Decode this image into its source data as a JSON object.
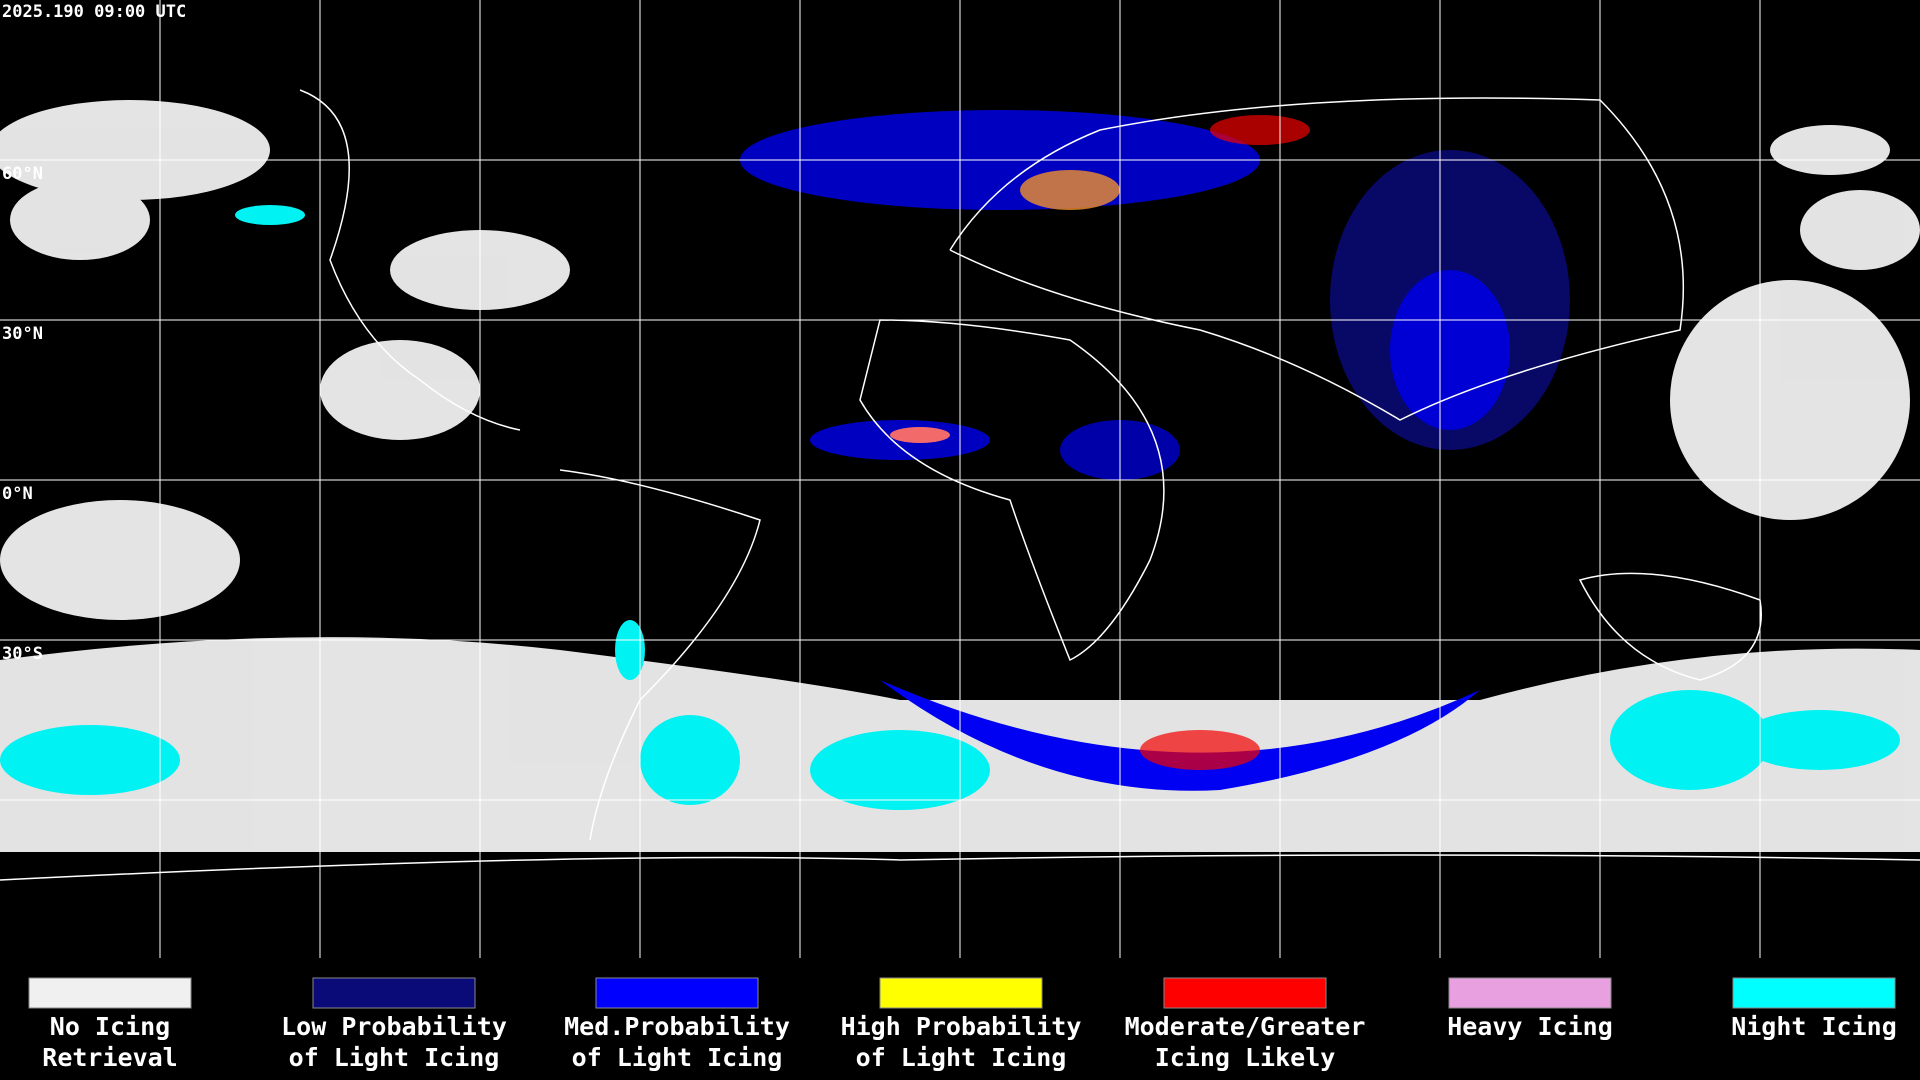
{
  "timestamp": "2025.190 09:00 UTC",
  "latitude_labels": [
    "60°N",
    "30°N",
    "0°N",
    "30°S"
  ],
  "legend": [
    {
      "lines": [
        "No Icing",
        "Retrieval"
      ],
      "color": "#f0f0f0"
    },
    {
      "lines": [
        "Low Probability",
        "of Light Icing"
      ],
      "color": "#0a0a78"
    },
    {
      "lines": [
        "Med.Probability",
        "of Light Icing"
      ],
      "color": "#0000ff"
    },
    {
      "lines": [
        "High Probability",
        "of Light Icing"
      ],
      "color": "#ffff00"
    },
    {
      "lines": [
        "Moderate/Greater",
        "Icing Likely"
      ],
      "color": "#ff0000"
    },
    {
      "lines": [
        "Heavy Icing"
      ],
      "color": "#e8a0e0"
    },
    {
      "lines": [
        "Night Icing"
      ],
      "color": "#00ffff"
    }
  ]
}
